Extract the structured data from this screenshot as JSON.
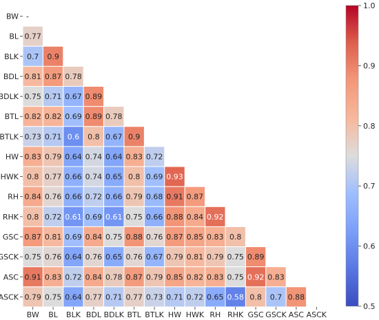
{
  "chart_data": {
    "type": "heatmap",
    "title": "",
    "xlabel": "",
    "ylabel": "",
    "mask": "upper-triangle",
    "colormap": "coolwarm",
    "labels": [
      "BW",
      "BL",
      "BLK",
      "BDL",
      "BDLK",
      "BTL",
      "BTLK",
      "HW",
      "HWK",
      "RH",
      "RHK",
      "GSC",
      "GSCK",
      "ASC",
      "ASCK"
    ],
    "diagonal_label": "-",
    "rows": [
      [],
      [
        0.77
      ],
      [
        0.7,
        0.9
      ],
      [
        0.81,
        0.87,
        0.78
      ],
      [
        0.75,
        0.71,
        0.67,
        0.89
      ],
      [
        0.82,
        0.82,
        0.69,
        0.89,
        0.78
      ],
      [
        0.73,
        0.71,
        0.6,
        0.8,
        0.67,
        0.9
      ],
      [
        0.83,
        0.79,
        0.64,
        0.74,
        0.64,
        0.83,
        0.72
      ],
      [
        0.8,
        0.77,
        0.66,
        0.74,
        0.65,
        0.8,
        0.69,
        0.93
      ],
      [
        0.84,
        0.76,
        0.66,
        0.72,
        0.66,
        0.79,
        0.68,
        0.91,
        0.87
      ],
      [
        0.8,
        0.72,
        0.61,
        0.69,
        0.61,
        0.75,
        0.66,
        0.88,
        0.84,
        0.92
      ],
      [
        0.87,
        0.81,
        0.69,
        0.84,
        0.75,
        0.88,
        0.76,
        0.87,
        0.85,
        0.83,
        0.8
      ],
      [
        0.75,
        0.76,
        0.64,
        0.76,
        0.65,
        0.76,
        0.67,
        0.79,
        0.81,
        0.79,
        0.75,
        0.89
      ],
      [
        0.91,
        0.83,
        0.72,
        0.84,
        0.78,
        0.87,
        0.79,
        0.85,
        0.82,
        0.83,
        0.75,
        0.92,
        0.83
      ],
      [
        0.79,
        0.75,
        0.64,
        0.77,
        0.71,
        0.77,
        0.73,
        0.71,
        0.72,
        0.65,
        0.58,
        0.8,
        0.7,
        0.88
      ]
    ],
    "colorbar": {
      "min": 0.5,
      "max": 1.0,
      "ticks": [
        "0.5",
        "0.6",
        "0.7",
        "0.8",
        "0.9",
        "1.0"
      ]
    }
  }
}
